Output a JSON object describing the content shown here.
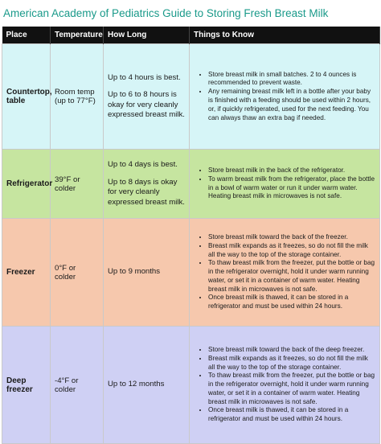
{
  "title": "American Academy of Pediatrics Guide to Storing Fresh Breast Milk",
  "headers": [
    "Place",
    "Temperature",
    "How Long",
    "Things to Know"
  ],
  "rows": [
    {
      "place": "Countertop, table",
      "temperature": "Room temp (up to 77°F)",
      "how_long": [
        "Up to 4 hours is best.",
        "Up to 6 to 8 hours is okay for very cleanly expressed breast milk."
      ],
      "things": [
        "Store breast milk in small batches. 2 to 4 ounces is recommended to prevent waste.",
        "Any remaining breast milk left in a bottle after your baby is finished with a feeding should be used within 2 hours, or, if quickly refrigerated, used for the next feeding. You can always thaw an extra bag if needed."
      ]
    },
    {
      "place": "Refrigerator",
      "temperature": "39°F or colder",
      "how_long": [
        "Up to 4 days is best.",
        "Up to 8 days is okay for very cleanly expressed breast milk."
      ],
      "things": [
        "Store breast milk in the back of the refrigerator.",
        "To warm breast milk from the refrigerator, place the bottle in a bowl of warm water or run it under warm water. Heating breast milk in microwaves is not safe."
      ]
    },
    {
      "place": "Freezer",
      "temperature": "0°F or colder",
      "how_long": [
        "Up to 9 months"
      ],
      "things": [
        "Store breast milk toward the back of the freezer.",
        "Breast milk expands as it freezes, so do not fill the milk all the way to the top of the storage container.",
        "To thaw breast milk from the freezer, put the bottle or bag in the refrigerator overnight, hold it under warm running water, or set it in a container of warm water. Heating breast milk in microwaves is not safe.",
        "Once breast milk is thawed, it can be stored in a refrigerator and must be used within 24 hours."
      ]
    },
    {
      "place": "Deep freezer",
      "temperature": "-4°F or colder",
      "how_long": [
        "Up to 12 months"
      ],
      "things": [
        "Store breast milk toward the back of the deep freezer.",
        "Breast milk expands as it freezes, so do not fill the milk all the way to the top of the storage container.",
        "To thaw breast milk from the freezer, put the bottle or bag in the refrigerator overnight, hold it under warm running water, or set it in a container of warm water. Heating breast milk in microwaves is not safe.",
        "Once breast milk is thawed, it can be stored in a refrigerator and must be used within 24 hours."
      ]
    }
  ],
  "colors": {
    "title": "#1a9a8a",
    "header_bg": "#111111",
    "countertop": "#d6f5f7",
    "refrigerator": "#c6e5a0",
    "freezer": "#f6c8ad",
    "deep_freezer": "#cfd0f4"
  }
}
